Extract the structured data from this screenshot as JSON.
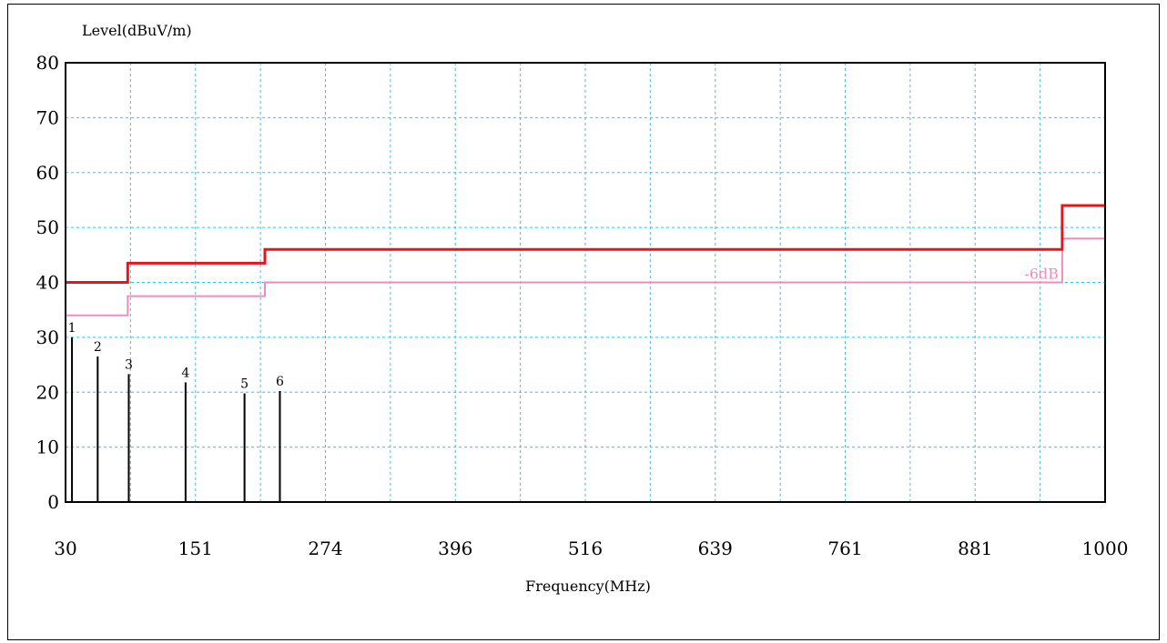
{
  "chart_data": {
    "type": "line",
    "ylabel": "Level(dBuV/m)",
    "xlabel": "Frequency(MHz)",
    "xlim": [
      30,
      1000
    ],
    "ylim": [
      0,
      80
    ],
    "x_tick_labels": [
      "30",
      "151",
      "274",
      "396",
      "516",
      "639",
      "761",
      "881",
      "1000"
    ],
    "y_tick_labels": [
      "0",
      "10",
      "20",
      "30",
      "40",
      "50",
      "60",
      "70",
      "80"
    ],
    "grid": true,
    "limit_line": {
      "color": "#e8141c",
      "points": [
        [
          30,
          40
        ],
        [
          88,
          40
        ],
        [
          88,
          43.5
        ],
        [
          216,
          43.5
        ],
        [
          216,
          46
        ],
        [
          960,
          46
        ],
        [
          960,
          54
        ],
        [
          1000,
          54
        ]
      ]
    },
    "margin_line": {
      "label": "-6dB",
      "color": "#f28cc0",
      "points": [
        [
          30,
          34
        ],
        [
          88,
          34
        ],
        [
          88,
          37.5
        ],
        [
          216,
          37.5
        ],
        [
          216,
          40
        ],
        [
          960,
          40
        ],
        [
          960,
          48
        ],
        [
          1000,
          48
        ]
      ]
    },
    "peaks": {
      "color": "#000000",
      "points": [
        {
          "label": "1",
          "x": 36,
          "y": 30
        },
        {
          "label": "2",
          "x": 60,
          "y": 26.5
        },
        {
          "label": "3",
          "x": 89,
          "y": 23.3
        },
        {
          "label": "4",
          "x": 142,
          "y": 21.8
        },
        {
          "label": "5",
          "x": 197,
          "y": 19.8
        },
        {
          "label": "6",
          "x": 230,
          "y": 20.2
        }
      ]
    }
  }
}
